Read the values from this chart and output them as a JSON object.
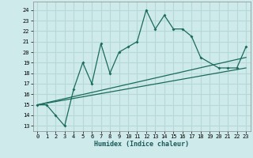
{
  "xlabel": "Humidex (Indice chaleur)",
  "bg_color": "#ceeaea",
  "grid_color": "#b8d8d8",
  "line_color": "#1a6b5a",
  "xlim": [
    -0.5,
    23.5
  ],
  "ylim": [
    12.5,
    24.8
  ],
  "yticks": [
    13,
    14,
    15,
    16,
    17,
    18,
    19,
    20,
    21,
    22,
    23,
    24
  ],
  "xticks": [
    0,
    1,
    2,
    3,
    4,
    5,
    6,
    7,
    8,
    9,
    10,
    11,
    12,
    13,
    14,
    15,
    16,
    17,
    18,
    19,
    20,
    21,
    22,
    23
  ],
  "main_line_x": [
    0,
    1,
    2,
    3,
    4,
    5,
    6,
    7,
    8,
    9,
    10,
    11,
    12,
    13,
    14,
    15,
    16,
    17,
    18,
    20,
    21,
    22,
    23
  ],
  "main_line_y": [
    15.0,
    15.0,
    14.0,
    13.0,
    16.5,
    19.0,
    17.0,
    20.8,
    18.0,
    20.0,
    20.5,
    21.0,
    24.0,
    22.2,
    23.5,
    22.2,
    22.2,
    21.5,
    19.5,
    18.5,
    18.5,
    18.5,
    20.5
  ],
  "line2_x": [
    0,
    23
  ],
  "line2_y": [
    15.0,
    19.5
  ],
  "line3_x": [
    0,
    23
  ],
  "line3_y": [
    15.0,
    18.5
  ]
}
